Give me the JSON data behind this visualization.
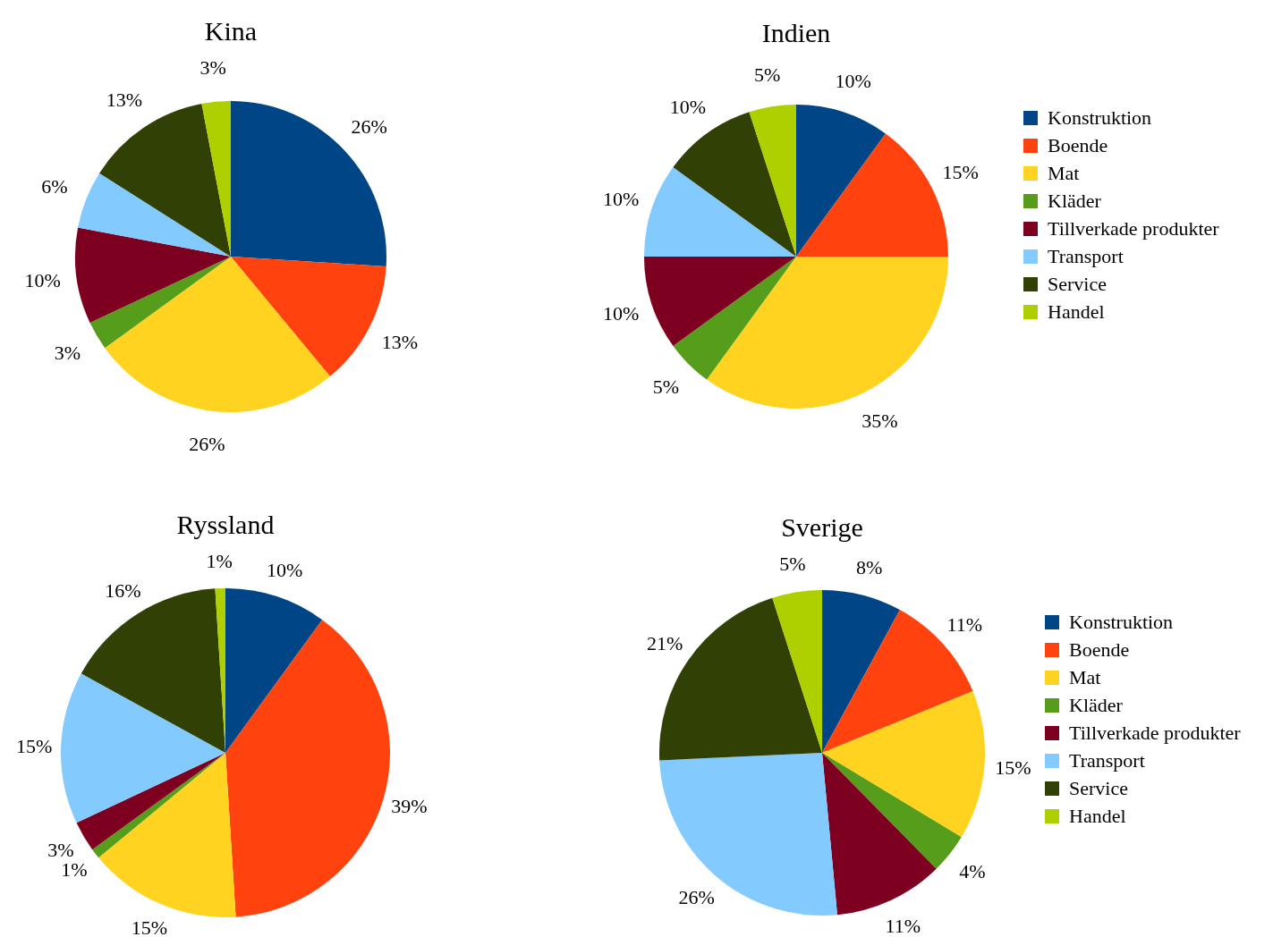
{
  "chart_data": [
    {
      "type": "pie",
      "title": "Kina",
      "categories": [
        null,
        null,
        null,
        null,
        null,
        null,
        null,
        null
      ],
      "values": [
        26,
        13,
        26,
        3,
        10,
        6,
        13,
        3
      ],
      "colors": [
        "#004586",
        "#ff420e",
        "#ffd320",
        "#579d1c",
        "#7e0021",
        "#83caff",
        "#314004",
        "#aecf00"
      ],
      "value_labels": [
        "26%",
        "13%",
        "26%",
        "3%",
        "10%",
        "6%",
        "13%",
        "3%"
      ]
    },
    {
      "type": "pie",
      "title": "Indien",
      "categories": [
        "Konstruktion",
        "Boende",
        "Mat",
        "Kläder",
        "Tillverkade produkter",
        "Transport",
        "Service",
        "Handel"
      ],
      "values": [
        10,
        15,
        35,
        5,
        10,
        10,
        10,
        5
      ],
      "colors": [
        "#004586",
        "#ff420e",
        "#ffd320",
        "#579d1c",
        "#7e0021",
        "#83caff",
        "#314004",
        "#aecf00"
      ],
      "value_labels": [
        "10%",
        "15%",
        "35%",
        "5%",
        "10%",
        "10%",
        "10%",
        "5%"
      ],
      "legend": "right"
    },
    {
      "type": "pie",
      "title": "Ryssland",
      "categories": [
        null,
        null,
        null,
        null,
        null,
        null,
        null,
        null
      ],
      "values": [
        10,
        39,
        15,
        1,
        3,
        15,
        16,
        1
      ],
      "colors": [
        "#004586",
        "#ff420e",
        "#ffd320",
        "#579d1c",
        "#7e0021",
        "#83caff",
        "#314004",
        "#aecf00"
      ],
      "value_labels": [
        "10%",
        "39%",
        "15%",
        "1%",
        "3%",
        "15%",
        "16%",
        "1%"
      ]
    },
    {
      "type": "pie",
      "title": "Sverige",
      "categories": [
        "Konstruktion",
        "Boende",
        "Mat",
        "Kläder",
        "Tillverkade produkter",
        "Transport",
        "Service",
        "Handel"
      ],
      "values": [
        8,
        11,
        15,
        4,
        11,
        26,
        21,
        5
      ],
      "colors": [
        "#004586",
        "#ff420e",
        "#ffd320",
        "#579d1c",
        "#7e0021",
        "#83caff",
        "#314004",
        "#aecf00"
      ],
      "value_labels": [
        "8%",
        "11%",
        "15%",
        "4%",
        "11%",
        "26%",
        "21%",
        "5%"
      ],
      "legend": "right"
    }
  ]
}
